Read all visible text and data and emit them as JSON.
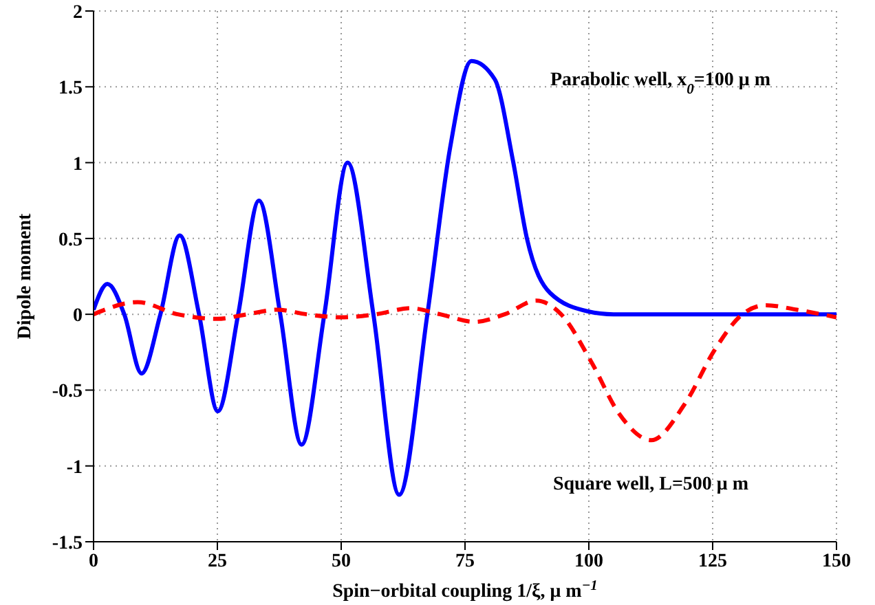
{
  "chart_data": {
    "type": "line",
    "xlabel": "Spin−orbital coupling  1/ξ, μ m$^{−1}$",
    "ylabel": "Dipole moment",
    "xlim": [
      0,
      150
    ],
    "xticks": [
      0,
      25,
      50,
      75,
      100,
      125,
      150
    ],
    "ylim": [
      -1.5,
      2
    ],
    "yticks": [
      -1.5,
      -1,
      -0.5,
      0,
      0.5,
      1,
      1.5,
      2
    ],
    "grid": true,
    "series": [
      {
        "name": "Parabolic well, x$_{0}$=100 μ m",
        "color": "#0000ff",
        "line_style": "solid",
        "x": [
          0,
          2.8,
          6.2,
          9.7,
          13.5,
          17.4,
          21.3,
          25.1,
          29.2,
          33.4,
          37.7,
          42,
          46.6,
          51.3,
          56.5,
          61.7,
          67.4,
          72,
          76.3,
          81,
          84.7,
          87.5,
          92.2,
          99.7,
          105,
          115,
          130,
          150
        ],
        "values": [
          0.03,
          0.2,
          0,
          -0.39,
          0,
          0.52,
          0,
          -0.64,
          0,
          0.75,
          0,
          -0.86,
          0,
          1.0,
          0,
          -1.19,
          0,
          1.1,
          1.67,
          1.55,
          1.01,
          0.5,
          0.14,
          0.02,
          0,
          0,
          0,
          0
        ]
      },
      {
        "name": "Square well, L=500 μ m",
        "color": "#ff0000",
        "line_style": "dashed",
        "x": [
          0,
          8.9,
          17,
          25,
          31,
          37,
          43,
          50,
          57,
          64,
          70,
          77,
          83,
          89.4,
          94.4,
          100.6,
          106,
          112.6,
          119.4,
          125.5,
          131,
          135.7,
          142,
          150
        ],
        "values": [
          0,
          0.08,
          0,
          -0.03,
          0,
          0.03,
          0,
          -0.02,
          0,
          0.04,
          0,
          -0.05,
          0,
          0.09,
          0,
          -0.32,
          -0.65,
          -0.83,
          -0.59,
          -0.23,
          0,
          0.06,
          0.03,
          -0.02
        ]
      }
    ]
  }
}
